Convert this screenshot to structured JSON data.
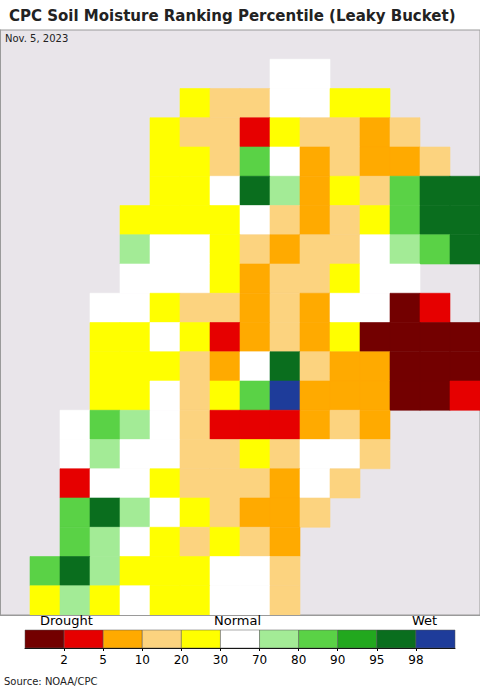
{
  "chart_data": {
    "type": "map_grid",
    "title": "CPC Soil Moisture Ranking Percentile (Leaky Bucket)",
    "subtitle": "Nov. 5, 2023",
    "source": "Source: NOAA/CPC",
    "legend_labels": [
      "Drought",
      "Normal",
      "Wet"
    ],
    "colorbar": {
      "ticks": [
        2,
        5,
        10,
        20,
        30,
        70,
        80,
        90,
        95,
        98
      ],
      "colors": [
        "#730000",
        "#e60000",
        "#ffaa00",
        "#fcd37f",
        "#ffff00",
        "#ffffff",
        "#a3eb96",
        "#5ad246",
        "#22a81e",
        "#0a6e1e",
        "#1e3c9a"
      ]
    },
    "xlim": [
      -77,
      -53
    ],
    "ylim": [
      -47,
      -17
    ],
    "tick_labels": false,
    "grid": false,
    "lon": [
      -76.25,
      -74.75,
      -73.25,
      -71.75,
      -70.25,
      -68.75,
      -67.25,
      -65.75,
      -64.25,
      -62.75,
      -61.25,
      -59.75,
      -58.25,
      -56.75,
      -55.25,
      -53.75
    ],
    "lat": [
      -17.75,
      -19.25,
      -20.75,
      -22.25,
      -23.75,
      -25.25,
      -26.75,
      -28.25,
      -29.75,
      -31.25,
      -32.75,
      -34.25,
      -35.75,
      -37.25,
      -38.75,
      -40.25,
      -41.75,
      -43.25,
      -44.75,
      -46.25
    ],
    "values": [
      [
        null,
        null,
        null,
        null,
        null,
        null,
        null,
        null,
        null,
        null,
        null,
        null,
        null,
        null,
        null,
        null
      ],
      [
        null,
        null,
        null,
        null,
        null,
        null,
        null,
        null,
        null,
        50,
        50,
        null,
        null,
        null,
        null,
        null
      ],
      [
        null,
        null,
        null,
        null,
        null,
        null,
        25,
        15,
        15,
        50,
        50,
        25,
        25,
        null,
        null,
        null
      ],
      [
        null,
        null,
        null,
        null,
        null,
        25,
        15,
        15,
        3,
        25,
        15,
        15,
        7,
        15,
        null,
        null
      ],
      [
        null,
        null,
        null,
        null,
        null,
        25,
        25,
        15,
        85,
        50,
        7,
        15,
        7,
        7,
        15,
        null
      ],
      [
        null,
        null,
        null,
        null,
        null,
        25,
        25,
        50,
        96,
        75,
        7,
        25,
        15,
        85,
        96,
        96
      ],
      [
        null,
        null,
        null,
        null,
        25,
        25,
        25,
        25,
        50,
        15,
        7,
        15,
        25,
        85,
        96,
        96
      ],
      [
        null,
        null,
        null,
        null,
        75,
        50,
        50,
        25,
        15,
        7,
        15,
        15,
        50,
        75,
        85,
        96
      ],
      [
        null,
        null,
        null,
        null,
        50,
        50,
        50,
        25,
        7,
        15,
        15,
        25,
        50,
        50,
        null,
        null
      ],
      [
        null,
        null,
        null,
        50,
        50,
        25,
        15,
        15,
        7,
        15,
        7,
        50,
        50,
        1,
        3,
        null
      ],
      [
        null,
        null,
        null,
        25,
        25,
        50,
        25,
        3,
        7,
        15,
        7,
        25,
        1,
        1,
        1,
        1
      ],
      [
        null,
        null,
        null,
        25,
        25,
        25,
        15,
        7,
        50,
        96,
        15,
        7,
        7,
        1,
        1,
        1
      ],
      [
        null,
        null,
        null,
        25,
        25,
        50,
        15,
        25,
        85,
        99,
        7,
        7,
        7,
        1,
        1,
        3
      ],
      [
        null,
        null,
        50,
        85,
        75,
        50,
        15,
        3,
        3,
        3,
        7,
        15,
        7,
        null,
        null,
        null
      ],
      [
        null,
        null,
        50,
        75,
        50,
        50,
        15,
        15,
        25,
        15,
        50,
        50,
        15,
        null,
        null,
        null
      ],
      [
        null,
        null,
        3,
        50,
        50,
        25,
        15,
        15,
        15,
        7,
        50,
        15,
        null,
        null,
        null,
        null
      ],
      [
        null,
        null,
        85,
        96,
        75,
        50,
        25,
        15,
        7,
        7,
        15,
        null,
        null,
        null,
        null,
        null
      ],
      [
        null,
        null,
        85,
        75,
        50,
        25,
        15,
        25,
        15,
        7,
        null,
        null,
        null,
        null,
        null,
        null
      ],
      [
        null,
        85,
        96,
        75,
        25,
        25,
        25,
        50,
        50,
        15,
        null,
        null,
        null,
        null,
        null,
        null
      ],
      [
        null,
        25,
        75,
        25,
        50,
        25,
        25,
        50,
        50,
        15,
        null,
        null,
        null,
        null,
        null,
        null
      ]
    ]
  }
}
